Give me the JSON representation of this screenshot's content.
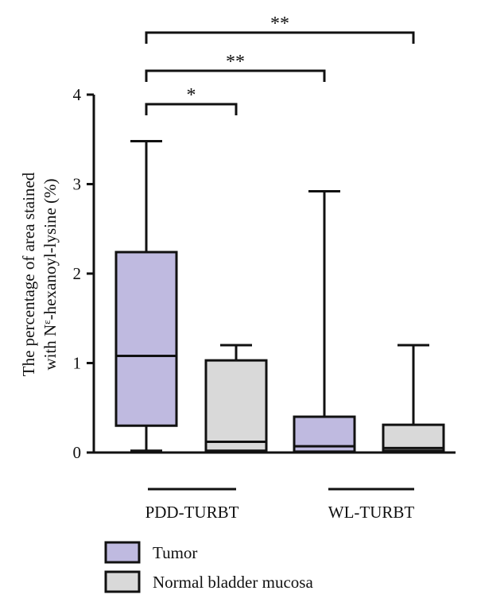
{
  "chart_data": {
    "type": "boxplot",
    "ylabel_line1": "The percentage of area stained",
    "ylabel_line2_prefix": "with N",
    "ylabel_line2_sup": "ε",
    "ylabel_line2_suffix": "-hexanoyl-lysine (%)",
    "ylim": [
      0,
      4
    ],
    "yticks": [
      "0",
      "1",
      "2",
      "3",
      "4"
    ],
    "yticks_values": [
      0,
      1,
      2,
      3,
      4
    ],
    "groups": [
      "PDD-TURBT",
      "WL-TURBT"
    ],
    "series": [
      {
        "name": "Tumor",
        "color": "#bfbae0"
      },
      {
        "name": "Normal bladder mucosa",
        "color": "#d9d9d9"
      }
    ],
    "boxes": [
      {
        "group": "PDD-TURBT",
        "series": "Tumor",
        "min": 0.02,
        "q1": 0.3,
        "median": 1.08,
        "q3": 2.24,
        "max": 3.48
      },
      {
        "group": "PDD-TURBT",
        "series": "Normal bladder mucosa",
        "min": 0.01,
        "q1": 0.02,
        "median": 0.12,
        "q3": 1.03,
        "max": 1.2
      },
      {
        "group": "WL-TURBT",
        "series": "Tumor",
        "min": 0.0,
        "q1": 0.01,
        "median": 0.07,
        "q3": 0.4,
        "max": 2.92
      },
      {
        "group": "WL-TURBT",
        "series": "Normal bladder mucosa",
        "min": 0.0,
        "q1": 0.02,
        "median": 0.05,
        "q3": 0.31,
        "max": 1.2
      }
    ],
    "significance": [
      {
        "from": 0,
        "to": 1,
        "label": "*"
      },
      {
        "from": 0,
        "to": 2,
        "label": "**"
      },
      {
        "from": 0,
        "to": 3,
        "label": "**"
      }
    ]
  }
}
